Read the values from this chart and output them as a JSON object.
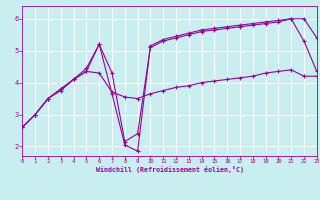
{
  "xlabel": "Windchill (Refroidissement éolien,°C)",
  "bg_color": "#c8eef0",
  "line_color": "#990099",
  "grid_color": "#ffffff",
  "xmin": 0,
  "xmax": 23,
  "ymin": 1.7,
  "ymax": 6.4,
  "yticks": [
    2,
    3,
    4,
    5,
    6
  ],
  "xticks": [
    0,
    1,
    2,
    3,
    4,
    5,
    6,
    7,
    8,
    9,
    10,
    11,
    12,
    13,
    14,
    15,
    16,
    17,
    18,
    19,
    20,
    21,
    22,
    23
  ],
  "series": [
    {
      "x": [
        0,
        1,
        2,
        3,
        4,
        5,
        6,
        7,
        8,
        9,
        10,
        11,
        12,
        13,
        14,
        15,
        16,
        17,
        18,
        19,
        20,
        21,
        22,
        23
      ],
      "y": [
        2.6,
        3.0,
        3.5,
        3.8,
        4.1,
        4.35,
        4.3,
        3.7,
        3.55,
        3.5,
        3.65,
        3.75,
        3.85,
        3.9,
        4.0,
        4.05,
        4.1,
        4.15,
        4.2,
        4.3,
        4.35,
        4.4,
        4.2,
        4.2
      ]
    },
    {
      "x": [
        0,
        1,
        2,
        3,
        4,
        5,
        6,
        7,
        8,
        9,
        10,
        11,
        12,
        13,
        14,
        15,
        16,
        17,
        18,
        19,
        20,
        21,
        22,
        23
      ],
      "y": [
        2.6,
        3.0,
        3.5,
        3.8,
        4.1,
        4.35,
        5.2,
        4.3,
        2.15,
        2.4,
        5.1,
        5.3,
        5.4,
        5.5,
        5.6,
        5.65,
        5.7,
        5.75,
        5.8,
        5.85,
        5.9,
        6.0,
        5.3,
        4.35
      ]
    },
    {
      "x": [
        0,
        1,
        2,
        3,
        4,
        5,
        6,
        7,
        8,
        9,
        10,
        11,
        12,
        13,
        14,
        15,
        16,
        17,
        18,
        19,
        20,
        21,
        22,
        23
      ],
      "y": [
        2.6,
        3.0,
        3.5,
        3.75,
        4.1,
        4.45,
        5.2,
        3.65,
        2.05,
        1.85,
        5.15,
        5.35,
        5.45,
        5.55,
        5.65,
        5.7,
        5.75,
        5.8,
        5.85,
        5.9,
        5.95,
        6.0,
        6.0,
        5.4
      ]
    }
  ]
}
